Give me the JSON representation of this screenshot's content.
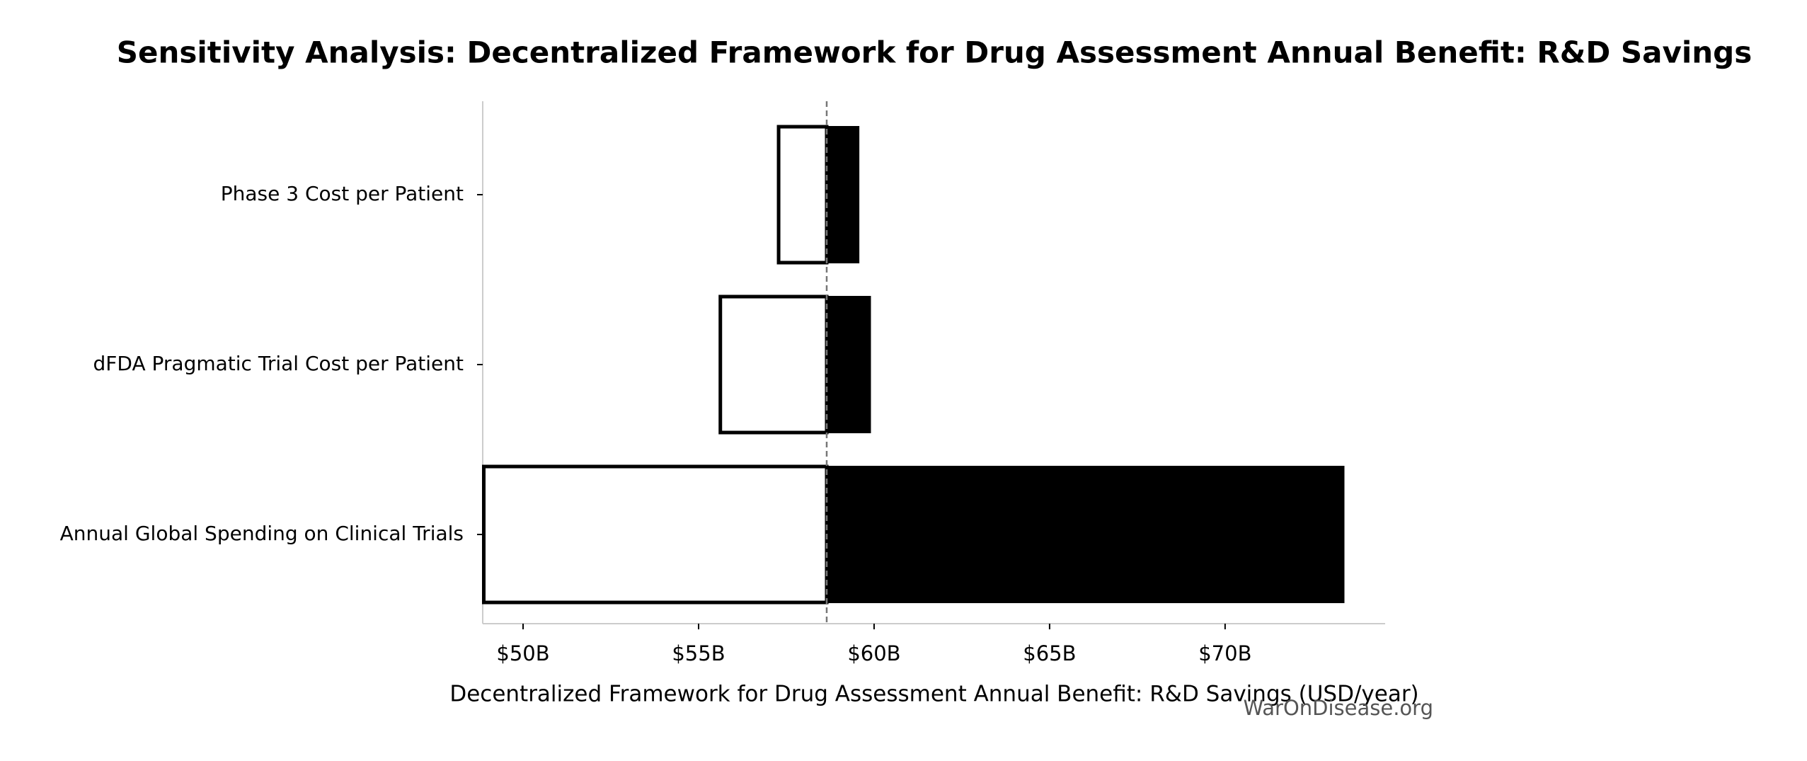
{
  "chart_data": {
    "type": "tornado",
    "title": "Sensitivity Analysis: Decentralized Framework for Drug Assessment Annual Benefit: R&D Savings",
    "xlabel": "Decentralized Framework for Drug Assessment Annual Benefit: R&D Savings (USD/year)",
    "watermark": "WarOnDisease.org",
    "categories": [
      "Phase 3 Cost per Patient",
      "dFDA Pragmatic Trial Cost per Patient",
      "Annual Global Spending on Clinical Trials"
    ],
    "baseline": 58.65,
    "low": [
      57.28,
      55.62,
      48.88
    ],
    "high": [
      59.56,
      59.89,
      73.38
    ],
    "low_color": "#ffffff",
    "high_color": "#000000",
    "xlim": [
      48.85,
      74.56
    ],
    "xticks": [
      {
        "value": 50,
        "label": "$50B"
      },
      {
        "value": 55,
        "label": "$55B"
      },
      {
        "value": 60,
        "label": "$60B"
      },
      {
        "value": 65,
        "label": "$65B"
      },
      {
        "value": 70,
        "label": "$70B"
      }
    ]
  }
}
